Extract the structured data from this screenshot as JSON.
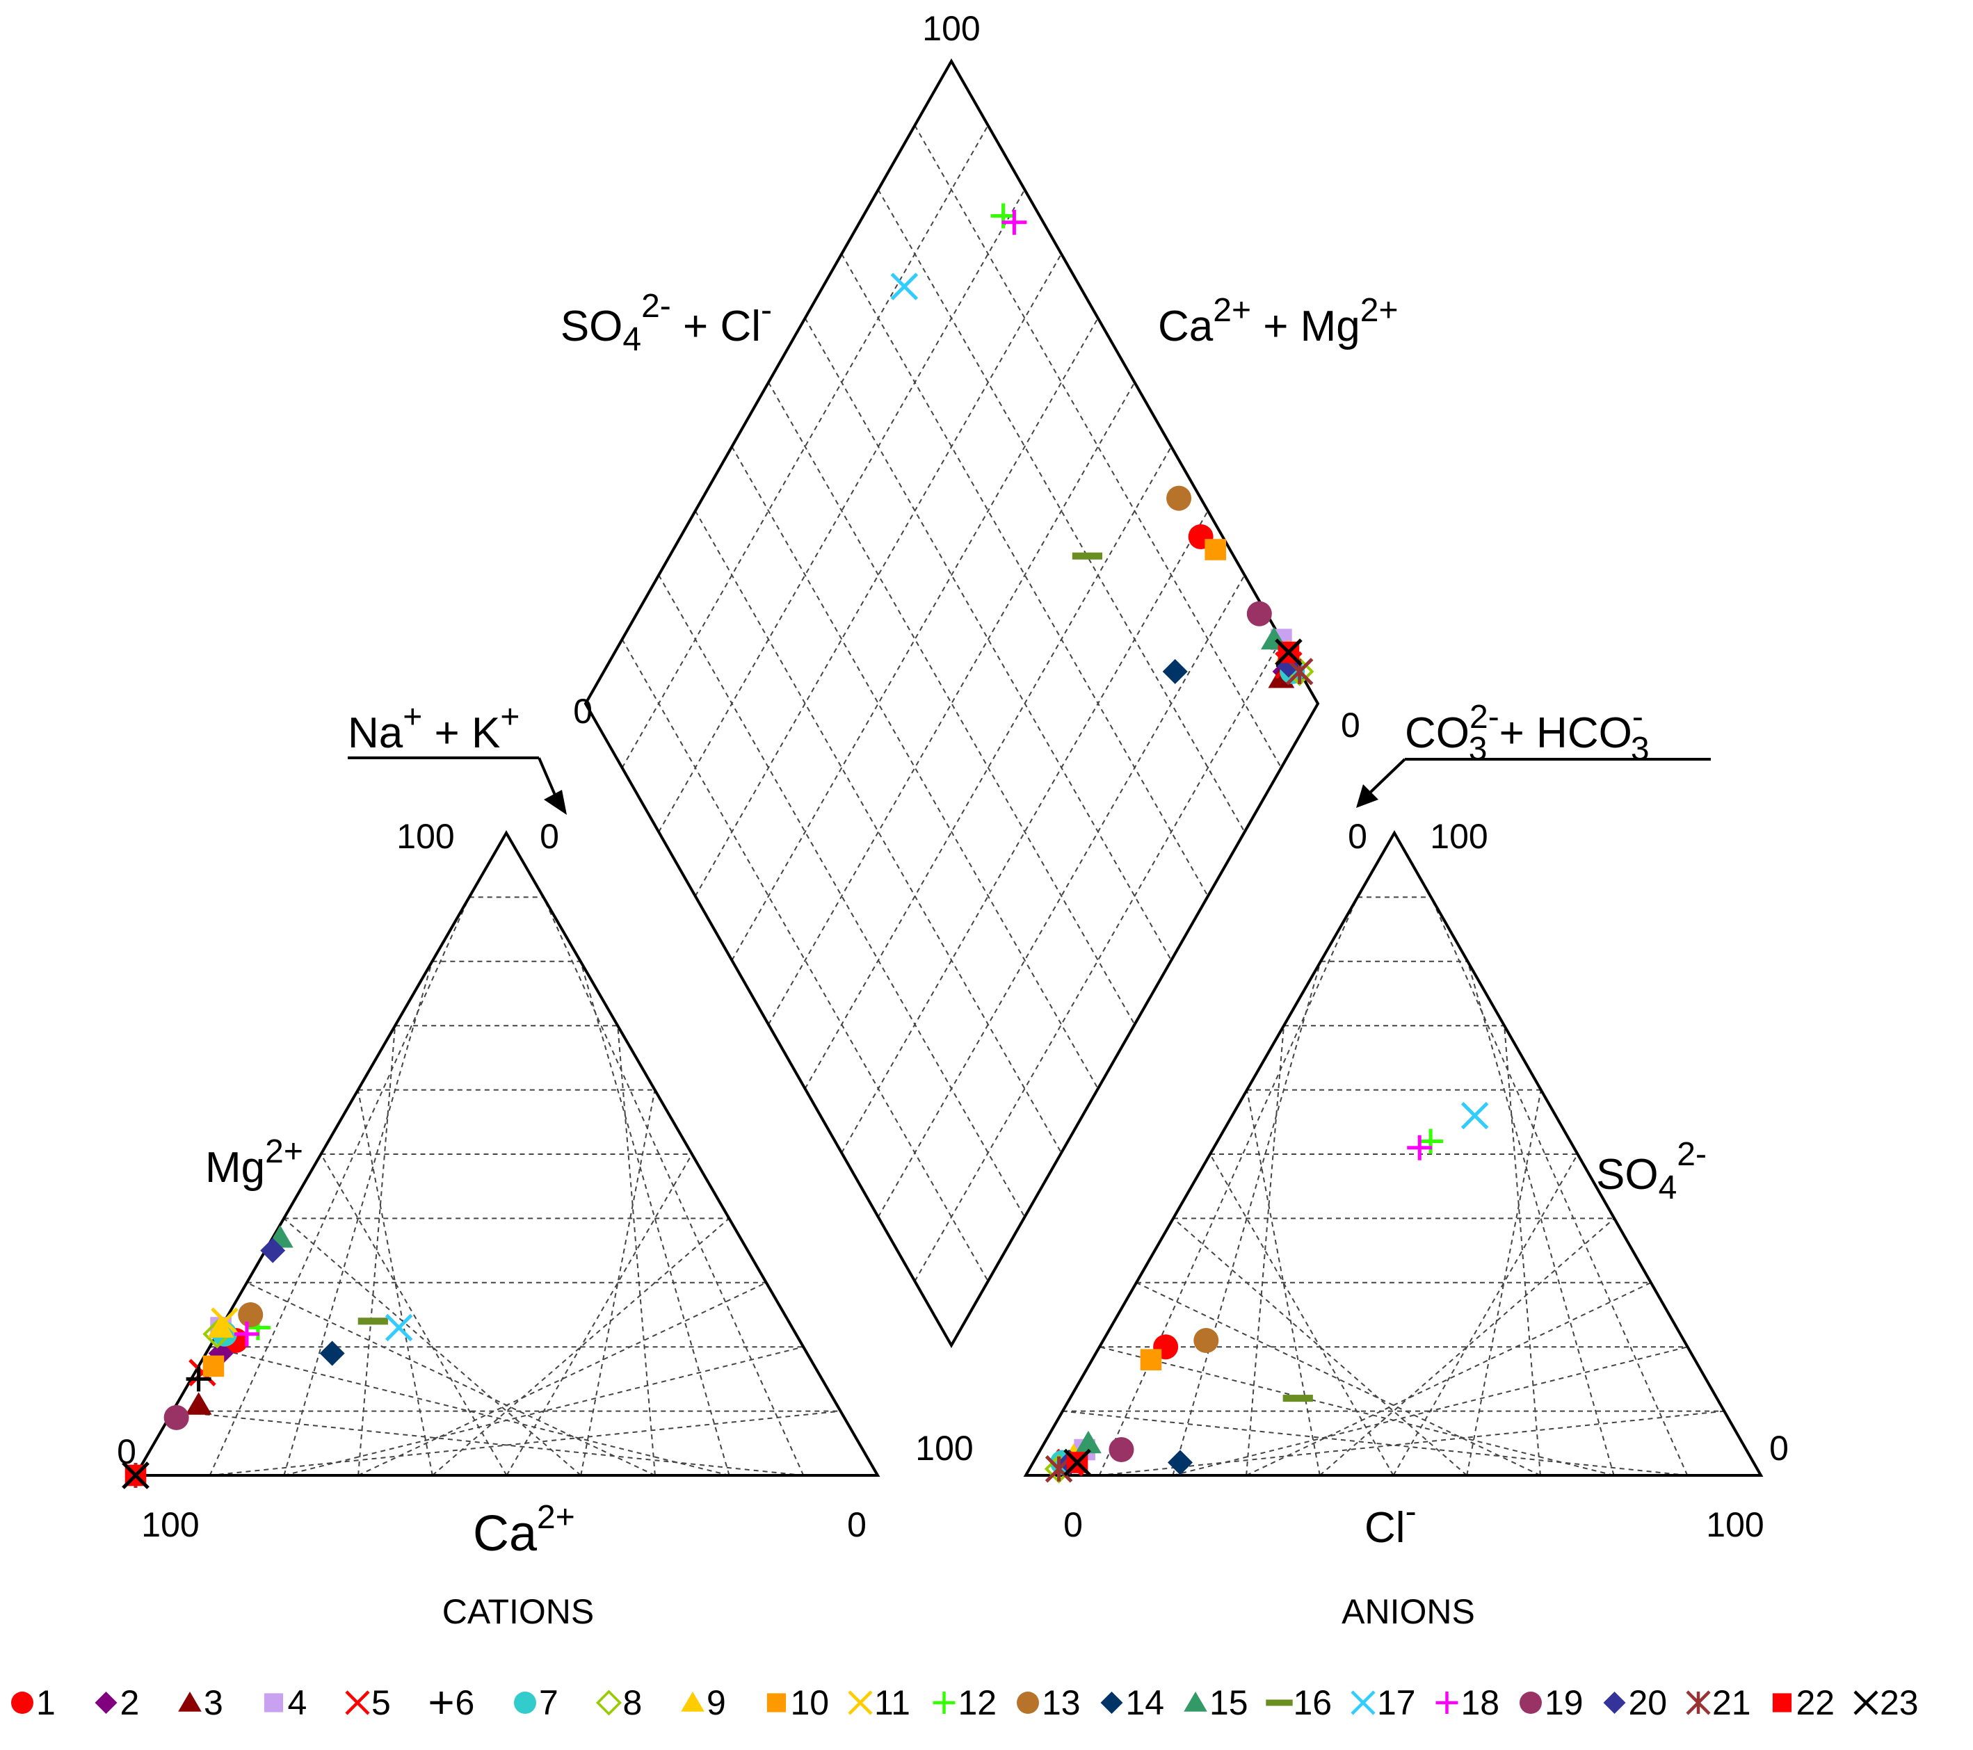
{
  "chart_data": {
    "type": "scatter",
    "subtype": "piper-diagram",
    "cations": {
      "title": "CATIONS",
      "bottom_axis_label": "Ca",
      "bottom_axis_sup": "2+",
      "left_axis_label": "Mg",
      "left_axis_sup": "2+",
      "right_axis_label_main": "Na",
      "right_axis_label_sup1": "+",
      "right_axis_label_mid": " + K",
      "right_axis_label_sup2": "+",
      "ticks": {
        "bottom_left": "100",
        "bottom_right": "0",
        "left_bottom": "0",
        "left_top": "100",
        "right_top": "0"
      }
    },
    "anions": {
      "title": "ANIONS",
      "bottom_axis_label": "Cl",
      "bottom_axis_sup": "-",
      "right_axis_label": "SO",
      "right_axis_sub": "4",
      "right_axis_sup": "2-",
      "left_axis_label_main": "CO",
      "left_axis_label_sup1": "2-",
      "left_axis_label_sub1": "3",
      "left_axis_label_mid": " + HCO",
      "left_axis_label_sup2": "-",
      "left_axis_label_sub2": "3",
      "ticks": {
        "left_bottom": "100",
        "bottom_left": "0",
        "bottom_right": "100",
        "right_bottom": "0",
        "apex_left": "0",
        "apex_right": "100"
      }
    },
    "diamond": {
      "left_label_main": "SO",
      "left_label_sub": "4",
      "left_label_sup": "2-",
      "left_label_rest": " + Cl",
      "left_label_sup2": "-",
      "right_label_main": "Ca",
      "right_label_sup1": "2+",
      "right_label_mid": " + Mg",
      "right_label_sup2": "2+",
      "ticks": {
        "top": "100",
        "left": "0",
        "right": "0"
      }
    },
    "series": [
      {
        "id": "1",
        "marker": "circle",
        "color": "#FF0000",
        "Ca": 76,
        "Mg": 21,
        "Cl": 9,
        "SO4": 20
      },
      {
        "id": "2",
        "marker": "diamond",
        "color": "#800080",
        "Ca": 79,
        "Mg": 19,
        "Cl": 5,
        "SO4": 2
      },
      {
        "id": "3",
        "marker": "triangle",
        "color": "#8B0000",
        "Ca": 86,
        "Mg": 11,
        "Cl": 5,
        "SO4": 2
      },
      {
        "id": "4",
        "marker": "square",
        "color": "#C8A2F0",
        "Ca": 77,
        "Mg": 23,
        "Cl": 6,
        "SO4": 4
      },
      {
        "id": "5",
        "marker": "x",
        "color": "#FF0000",
        "Ca": 83,
        "Mg": 16,
        "Cl": 5,
        "SO4": 2
      },
      {
        "id": "6",
        "marker": "plus",
        "color": "#000000",
        "Ca": 84,
        "Mg": 15,
        "Cl": 5,
        "SO4": 2
      },
      {
        "id": "7",
        "marker": "circle",
        "color": "#33CCCC",
        "Ca": 77,
        "Mg": 22,
        "Cl": 4,
        "SO4": 2
      },
      {
        "id": "8",
        "marker": "diamond-open",
        "color": "#99CC00",
        "Ca": 78,
        "Mg": 22,
        "Cl": 4,
        "SO4": 1
      },
      {
        "id": "9",
        "marker": "triangle",
        "color": "#FFCC00",
        "Ca": 77,
        "Mg": 23,
        "Cl": 5,
        "SO4": 3
      },
      {
        "id": "10",
        "marker": "square",
        "color": "#FF9900",
        "Ca": 81,
        "Mg": 17,
        "Cl": 8,
        "SO4": 18
      },
      {
        "id": "11",
        "marker": "x",
        "color": "#FFCC00",
        "Ca": 76,
        "Mg": 24,
        "Cl": 6,
        "SO4": 2
      },
      {
        "id": "12",
        "marker": "plus",
        "color": "#33FF00",
        "Ca": 72,
        "Mg": 23,
        "Cl": 29,
        "SO4": 52
      },
      {
        "id": "13",
        "marker": "circle",
        "color": "#B8732A",
        "Ca": 72,
        "Mg": 25,
        "Cl": 14,
        "SO4": 21
      },
      {
        "id": "14",
        "marker": "diamond",
        "color": "#003366",
        "Ca": 64,
        "Mg": 19,
        "Cl": 20,
        "SO4": 2
      },
      {
        "id": "15",
        "marker": "triangle",
        "color": "#339966",
        "Ca": 62,
        "Mg": 37,
        "Cl": 6,
        "SO4": 5
      },
      {
        "id": "16",
        "marker": "dash",
        "color": "#6B8E23",
        "Ca": 56,
        "Mg": 24,
        "Cl": 31,
        "SO4": 12
      },
      {
        "id": "17",
        "marker": "x",
        "color": "#33CCFF",
        "Ca": 53,
        "Mg": 23,
        "Cl": 33,
        "SO4": 56
      },
      {
        "id": "18",
        "marker": "plus",
        "color": "#FF00FF",
        "Ca": 74,
        "Mg": 22,
        "Cl": 28,
        "SO4": 51
      },
      {
        "id": "19",
        "marker": "circle",
        "color": "#993366",
        "Ca": 90,
        "Mg": 9,
        "Cl": 11,
        "SO4": 4
      },
      {
        "id": "20",
        "marker": "diamond",
        "color": "#333399",
        "Ca": 64,
        "Mg": 35,
        "Cl": 5,
        "SO4": 2
      },
      {
        "id": "21",
        "marker": "asterisk",
        "color": "#993333",
        "Ca": 100,
        "Mg": 0,
        "Cl": 4,
        "SO4": 1
      },
      {
        "id": "22",
        "marker": "square",
        "color": "#FF0000",
        "Ca": 100,
        "Mg": 0,
        "Cl": 6,
        "SO4": 2
      },
      {
        "id": "23",
        "marker": "x",
        "color": "#000000",
        "Ca": 100,
        "Mg": 0,
        "Cl": 6,
        "SO4": 2
      }
    ],
    "grid": "dashed, 10% intervals"
  }
}
